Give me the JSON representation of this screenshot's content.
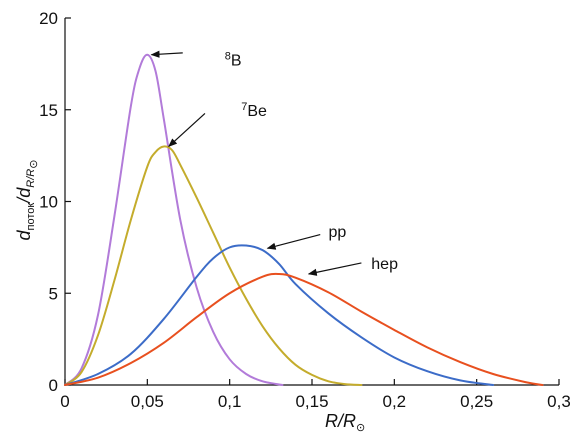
{
  "chart_data": {
    "type": "line",
    "xlim": [
      0,
      0.3
    ],
    "ylim": [
      0,
      20
    ],
    "x_ticks": [
      {
        "value": 0,
        "label": "0"
      },
      {
        "value": 0.05,
        "label": "0,05"
      },
      {
        "value": 0.1,
        "label": "0,1"
      },
      {
        "value": 0.15,
        "label": "0,15"
      },
      {
        "value": 0.2,
        "label": "0,2"
      },
      {
        "value": 0.25,
        "label": "0,25"
      },
      {
        "value": 0.3,
        "label": "0,3"
      }
    ],
    "y_ticks": [
      {
        "value": 0,
        "label": "0"
      },
      {
        "value": 5,
        "label": "5"
      },
      {
        "value": 10,
        "label": "10"
      },
      {
        "value": 15,
        "label": "15"
      },
      {
        "value": 20,
        "label": "20"
      }
    ],
    "xlabel": {
      "main": "R/R",
      "sub": "⊙"
    },
    "ylabel": {
      "d1": "d",
      "sub1": "поток",
      "slash": "/",
      "d2": "d",
      "sub2": "R/R",
      "sun": "⊙"
    },
    "grid": false,
    "series": [
      {
        "name": "8B",
        "color": "#b27bd9",
        "x": [
          0,
          0.01,
          0.02,
          0.03,
          0.04,
          0.045,
          0.05,
          0.055,
          0.06,
          0.07,
          0.08,
          0.09,
          0.1,
          0.11,
          0.12,
          0.132
        ],
        "y": [
          0,
          0.9,
          3.8,
          9.2,
          15.2,
          17.2,
          18,
          17.1,
          14.5,
          9.0,
          5.3,
          2.9,
          1.4,
          0.6,
          0.2,
          0
        ]
      },
      {
        "name": "7Be",
        "color": "#c4ac2c",
        "x": [
          0,
          0.01,
          0.02,
          0.03,
          0.04,
          0.05,
          0.055,
          0.06,
          0.065,
          0.07,
          0.08,
          0.09,
          0.1,
          0.11,
          0.12,
          0.13,
          0.14,
          0.15,
          0.16,
          0.17,
          0.18
        ],
        "y": [
          0,
          0.7,
          2.7,
          5.7,
          9.0,
          11.9,
          12.7,
          13.0,
          12.8,
          12.0,
          10.2,
          8.3,
          6.4,
          4.7,
          3.2,
          2.0,
          1.1,
          0.55,
          0.2,
          0.05,
          0
        ]
      },
      {
        "name": "pp",
        "color": "#3c6cc8",
        "x": [
          0,
          0.02,
          0.04,
          0.06,
          0.08,
          0.09,
          0.1,
          0.11,
          0.12,
          0.13,
          0.14,
          0.16,
          0.18,
          0.2,
          0.22,
          0.24,
          0.26
        ],
        "y": [
          0,
          0.6,
          1.7,
          3.6,
          5.9,
          6.9,
          7.5,
          7.6,
          7.35,
          6.6,
          5.5,
          3.9,
          2.6,
          1.5,
          0.75,
          0.25,
          0
        ]
      },
      {
        "name": "hep",
        "color": "#e8501f",
        "x": [
          0,
          0.02,
          0.04,
          0.06,
          0.08,
          0.1,
          0.12,
          0.13,
          0.14,
          0.16,
          0.18,
          0.2,
          0.22,
          0.24,
          0.26,
          0.28,
          0.29
        ],
        "y": [
          0,
          0.4,
          1.2,
          2.3,
          3.7,
          5.0,
          5.9,
          6.05,
          5.85,
          5.05,
          4.0,
          3.0,
          2.05,
          1.25,
          0.6,
          0.15,
          0
        ]
      }
    ],
    "annotations": [
      {
        "series": "8B",
        "text": "B",
        "sup": "8"
      },
      {
        "series": "7Be",
        "text": "Be",
        "sup": "7"
      },
      {
        "series": "pp",
        "text": "pp",
        "sup": ""
      },
      {
        "series": "hep",
        "text": "hep",
        "sup": ""
      }
    ]
  }
}
